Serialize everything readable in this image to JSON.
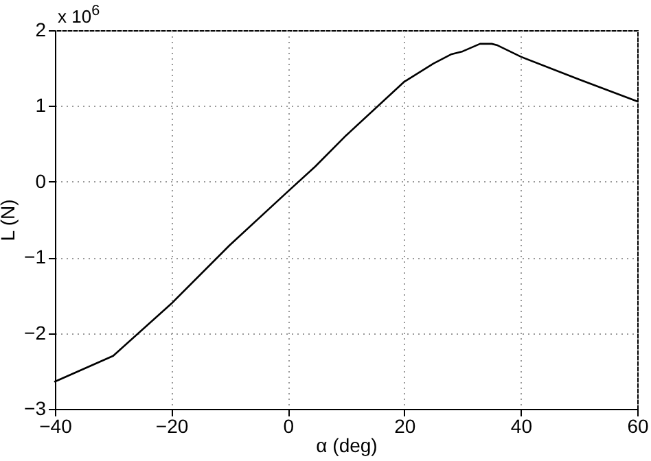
{
  "chart_data": {
    "type": "line",
    "xlabel": "α (deg)",
    "ylabel": "L (N)",
    "annotations": [
      "x 10$^{6}$"
    ],
    "x": [
      -40,
      -30,
      -20,
      -10,
      0,
      4.7,
      10,
      20,
      25,
      28,
      30,
      33,
      35,
      36,
      40,
      50,
      60
    ],
    "series": [
      {
        "color": "#000000",
        "values": [
          -2.64,
          -2.3,
          -1.61,
          -0.84,
          -0.13,
          0.2,
          0.61,
          1.32,
          1.56,
          1.68,
          1.72,
          1.82,
          1.82,
          1.8,
          1.65,
          1.35,
          1.06
        ]
      }
    ],
    "xlim": [
      -40,
      60
    ],
    "xticks": [
      -40,
      -20,
      0,
      20,
      40,
      60
    ],
    "ylim": [
      -3,
      2
    ],
    "yticks": [
      -3,
      -2,
      -1,
      0,
      1,
      2
    ],
    "grid": true,
    "line_style": "solid",
    "marker": "none"
  }
}
